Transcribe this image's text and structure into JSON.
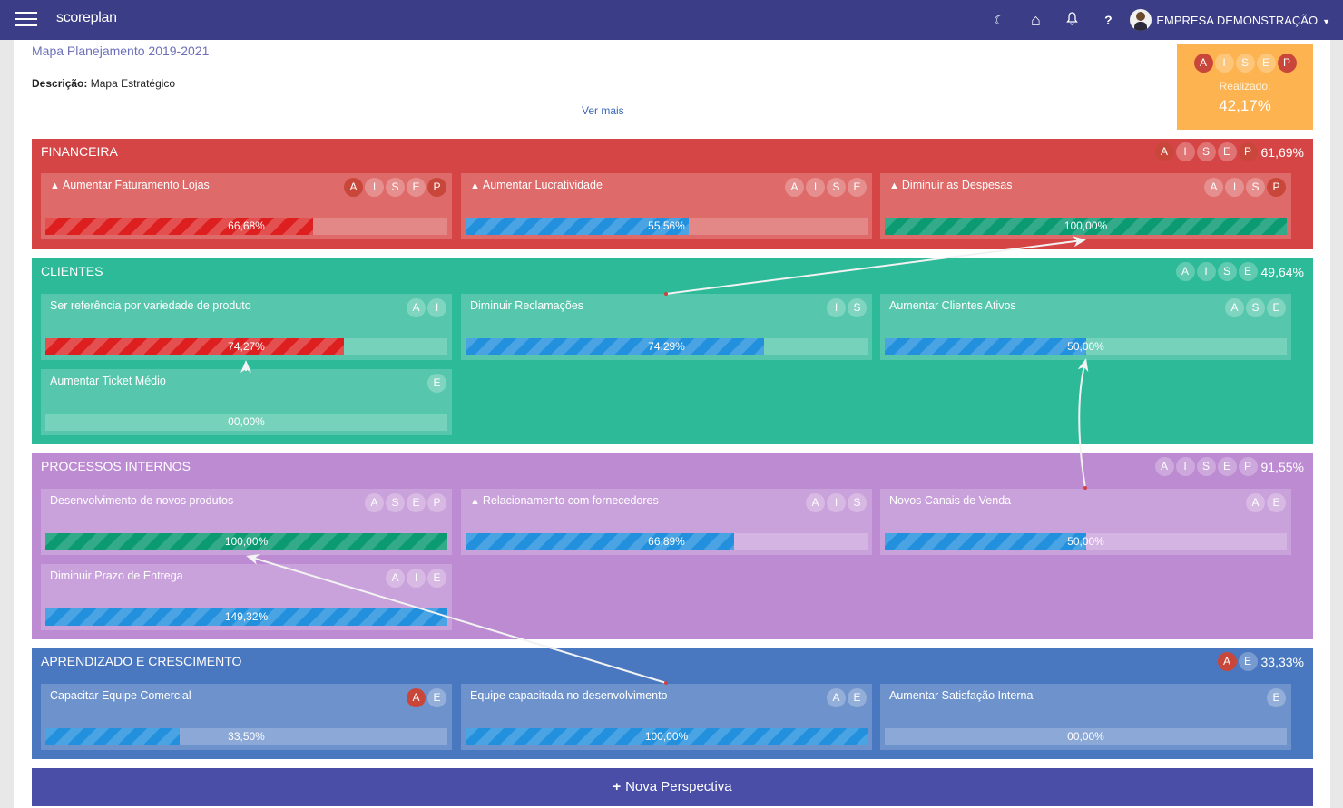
{
  "topbar": {
    "brand": "scoreplan",
    "icons": [
      "moon-icon",
      "home-icon",
      "bell-icon",
      "help-icon"
    ],
    "company": "EMPRESA DEMONSTRAÇÃO",
    "moon_glyph": "☾",
    "home_glyph": "⌂",
    "bell_glyph": "🔔",
    "help_glyph": "?",
    "caret_glyph": "▼"
  },
  "map": {
    "title": "Mapa Planejamento 2019-2021",
    "description_label": "Descrição:",
    "description_value": "Mapa Estratégico",
    "ver_mais": "Ver mais"
  },
  "summary": {
    "badges": [
      {
        "letter": "A",
        "on": true
      },
      {
        "letter": "I",
        "on": false
      },
      {
        "letter": "S",
        "on": false
      },
      {
        "letter": "E",
        "on": false
      },
      {
        "letter": "P",
        "on": true
      }
    ],
    "label": "Realizado:",
    "value": "42,17%"
  },
  "colors": {
    "topbar": "#3b3d86",
    "financeira": "#d64545",
    "clientes": "#2cba98",
    "processos": "#bd8bd2",
    "aprendizado": "#4a78c0",
    "summary": "#fdb34f",
    "nova": "#4a4ea6"
  },
  "perspectives": [
    {
      "name": "FINANCEIRA",
      "percent": "61,69%",
      "badges": [
        {
          "letter": "A",
          "on": true
        },
        {
          "letter": "I",
          "on": false
        },
        {
          "letter": "S",
          "on": false
        },
        {
          "letter": "E",
          "on": false
        },
        {
          "letter": "P",
          "on": true
        }
      ],
      "objectives": [
        {
          "title": "Aumentar Faturamento Lojas",
          "warning": true,
          "value": "66,68%",
          "fill": 66.68,
          "color": "red",
          "badges": [
            {
              "letter": "A",
              "on": true
            },
            {
              "letter": "I",
              "on": false
            },
            {
              "letter": "S",
              "on": false
            },
            {
              "letter": "E",
              "on": false
            },
            {
              "letter": "P",
              "on": true
            }
          ]
        },
        {
          "title": "Aumentar Lucratividade",
          "warning": true,
          "value": "55,56%",
          "fill": 55.56,
          "color": "blue",
          "badges": [
            {
              "letter": "A",
              "on": false
            },
            {
              "letter": "I",
              "on": false
            },
            {
              "letter": "S",
              "on": false
            },
            {
              "letter": "E",
              "on": false
            }
          ]
        },
        {
          "title": "Diminuir as Despesas",
          "warning": true,
          "value": "100,00%",
          "fill": 100,
          "color": "green",
          "badges": [
            {
              "letter": "A",
              "on": false
            },
            {
              "letter": "I",
              "on": false
            },
            {
              "letter": "S",
              "on": false
            },
            {
              "letter": "P",
              "on": true
            }
          ]
        }
      ]
    },
    {
      "name": "CLIENTES",
      "percent": "49,64%",
      "badges": [
        {
          "letter": "A",
          "on": false
        },
        {
          "letter": "I",
          "on": false
        },
        {
          "letter": "S",
          "on": false
        },
        {
          "letter": "E",
          "on": false
        }
      ],
      "objectives": [
        {
          "title": "Ser referência por variedade de produto",
          "warning": false,
          "value": "74,27%",
          "fill": 74.27,
          "color": "red",
          "badges": [
            {
              "letter": "A",
              "on": false
            },
            {
              "letter": "I",
              "on": false
            }
          ]
        },
        {
          "title": "Diminuir Reclamações",
          "warning": false,
          "value": "74,29%",
          "fill": 74.29,
          "color": "blue",
          "badges": [
            {
              "letter": "I",
              "on": false
            },
            {
              "letter": "S",
              "on": false
            }
          ]
        },
        {
          "title": "Aumentar Clientes Ativos",
          "warning": false,
          "value": "50,00%",
          "fill": 50,
          "color": "blue",
          "badges": [
            {
              "letter": "A",
              "on": false
            },
            {
              "letter": "S",
              "on": false
            },
            {
              "letter": "E",
              "on": false
            }
          ]
        },
        {
          "title": "Aumentar Ticket Médio",
          "warning": false,
          "value": "00,00%",
          "fill": 0,
          "color": "blue",
          "badges": [
            {
              "letter": "E",
              "on": false
            }
          ]
        }
      ]
    },
    {
      "name": "PROCESSOS INTERNOS",
      "percent": "91,55%",
      "badges": [
        {
          "letter": "A",
          "on": false
        },
        {
          "letter": "I",
          "on": false
        },
        {
          "letter": "S",
          "on": false
        },
        {
          "letter": "E",
          "on": false
        },
        {
          "letter": "P",
          "on": false
        }
      ],
      "objectives": [
        {
          "title": "Desenvolvimento de novos produtos",
          "warning": false,
          "value": "100,00%",
          "fill": 100,
          "color": "green",
          "badges": [
            {
              "letter": "A",
              "on": false
            },
            {
              "letter": "S",
              "on": false
            },
            {
              "letter": "E",
              "on": false
            },
            {
              "letter": "P",
              "on": false
            }
          ]
        },
        {
          "title": "Relacionamento com fornecedores",
          "warning": true,
          "value": "66,89%",
          "fill": 66.89,
          "color": "blue",
          "badges": [
            {
              "letter": "A",
              "on": false
            },
            {
              "letter": "I",
              "on": false
            },
            {
              "letter": "S",
              "on": false
            }
          ]
        },
        {
          "title": "Novos Canais de Venda",
          "warning": false,
          "value": "50,00%",
          "fill": 50,
          "color": "blue",
          "badges": [
            {
              "letter": "A",
              "on": false
            },
            {
              "letter": "E",
              "on": false
            }
          ]
        },
        {
          "title": "Diminuir Prazo de Entrega",
          "warning": false,
          "value": "149,32%",
          "fill": 100,
          "color": "blue",
          "badges": [
            {
              "letter": "A",
              "on": false
            },
            {
              "letter": "I",
              "on": false
            },
            {
              "letter": "E",
              "on": false
            }
          ]
        }
      ]
    },
    {
      "name": "APRENDIZADO E CRESCIMENTO",
      "percent": "33,33%",
      "badges": [
        {
          "letter": "A",
          "on": true
        },
        {
          "letter": "E",
          "on": false
        }
      ],
      "objectives": [
        {
          "title": "Capacitar Equipe Comercial",
          "warning": false,
          "value": "33,50%",
          "fill": 33.5,
          "color": "blue",
          "badges": [
            {
              "letter": "A",
              "on": true
            },
            {
              "letter": "E",
              "on": false
            }
          ]
        },
        {
          "title": "Equipe capacitada no desenvolvimento",
          "warning": false,
          "value": "100,00%",
          "fill": 100,
          "color": "blue",
          "badges": [
            {
              "letter": "A",
              "on": false
            },
            {
              "letter": "E",
              "on": false
            }
          ]
        },
        {
          "title": "Aumentar Satisfação Interna",
          "warning": false,
          "value": "00,00%",
          "fill": 0,
          "color": "blue",
          "badges": [
            {
              "letter": "E",
              "on": false
            }
          ]
        }
      ]
    }
  ],
  "nova_perspectiva": {
    "plus": "+",
    "label": "Nova Perspectiva"
  }
}
